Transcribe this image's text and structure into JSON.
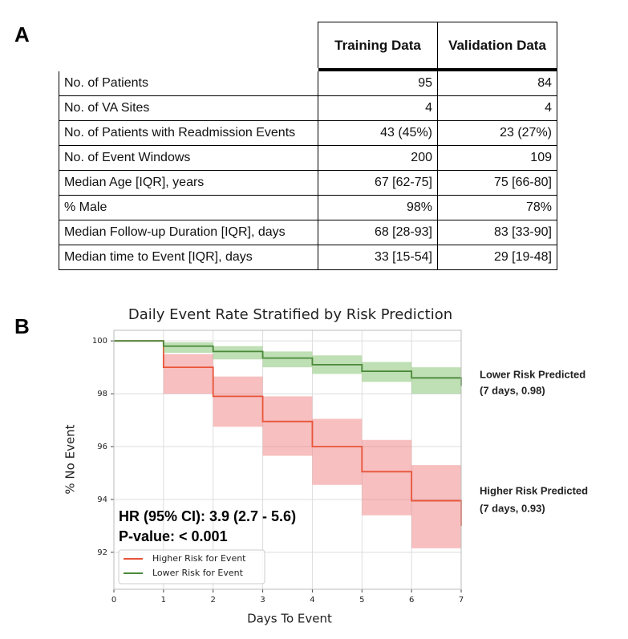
{
  "panels": [
    "A",
    "B"
  ],
  "table": {
    "header": [
      "Training Data",
      "Validation Data"
    ],
    "rows": [
      [
        "No. of Patients",
        "95",
        "84"
      ],
      [
        "No. of VA Sites",
        "4",
        "4"
      ],
      [
        "No. of Patients with Readmission Events",
        "43 (45%)",
        "23 (27%)"
      ],
      [
        "No. of Event Windows",
        "200",
        "109"
      ],
      [
        "Median Age [IQR], years",
        "67 [62-75]",
        "75 [66-80]"
      ],
      [
        "% Male",
        "98%",
        "78%"
      ],
      [
        "Median Follow-up Duration [IQR], days",
        "68 [28-93]",
        "83 [33-90]"
      ],
      [
        "Median time to Event [IQR], days",
        "33 [15-54]",
        "29 [19-48]"
      ]
    ]
  },
  "chart_data": {
    "type": "step",
    "title": "Daily Event Rate Stratified by Risk Prediction",
    "xlabel": "Days To Event",
    "ylabel": "% No Event",
    "x": [
      0,
      1,
      2,
      3,
      4,
      5,
      6,
      7
    ],
    "xlim": [
      0,
      7
    ],
    "xticks": [
      0,
      1,
      2,
      3,
      4,
      5,
      6,
      7
    ],
    "ylim": [
      90.6,
      100.4
    ],
    "yticks": [
      92,
      94,
      96,
      98,
      100
    ],
    "grid": true,
    "legend": "lower left",
    "annotations": [
      "HR (95% CI):  3.9 (2.7 - 5.6)",
      "P-value: < 0.001"
    ],
    "series": [
      {
        "name": "Higher Risk for Event",
        "color": "#e8553a",
        "band_color": "#f08080",
        "label_color": "#d9603f",
        "end_label": [
          "Higher Risk Predicted",
          "(7 days, 0.93)"
        ],
        "values": [
          100,
          99.0,
          97.9,
          96.95,
          96.0,
          95.05,
          93.95,
          93.0
        ],
        "ci_upper": [
          100,
          99.5,
          98.65,
          97.9,
          97.05,
          96.25,
          95.3,
          95.3
        ],
        "ci_lower": [
          100,
          98.0,
          96.75,
          95.65,
          94.55,
          93.4,
          92.15,
          92.15
        ]
      },
      {
        "name": "Lower Risk for Event",
        "color": "#4a8a3a",
        "band_color": "#7fbf6a",
        "label_color": "#4a7a32",
        "end_label": [
          "Lower Risk Predicted",
          "(7 days, 0.98)"
        ],
        "values": [
          100,
          99.8,
          99.6,
          99.35,
          99.1,
          98.85,
          98.6,
          98.3
        ],
        "ci_upper": [
          100,
          99.95,
          99.8,
          99.6,
          99.45,
          99.2,
          99.0,
          99.0
        ],
        "ci_lower": [
          100,
          99.55,
          99.3,
          99.0,
          98.75,
          98.45,
          98.0,
          98.0
        ]
      }
    ]
  }
}
